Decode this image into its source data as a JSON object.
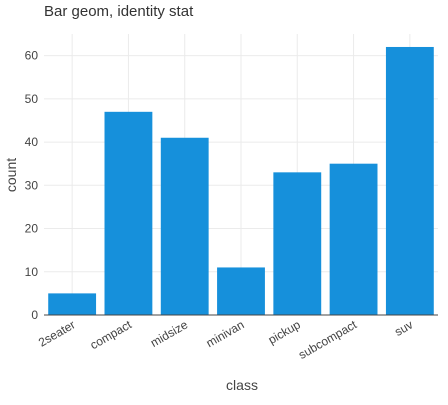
{
  "chart_data": {
    "type": "bar",
    "title": "Bar geom, identity stat",
    "xlabel": "class",
    "ylabel": "count",
    "categories": [
      "2seater",
      "compact",
      "midsize",
      "minivan",
      "pickup",
      "subcompact",
      "suv"
    ],
    "values": [
      5,
      47,
      41,
      11,
      33,
      35,
      62
    ],
    "ylim": [
      0,
      65
    ],
    "yticks": [
      0,
      10,
      20,
      30,
      40,
      50,
      60
    ],
    "grid": true,
    "bar_color": "#1690db",
    "legend": "none"
  }
}
